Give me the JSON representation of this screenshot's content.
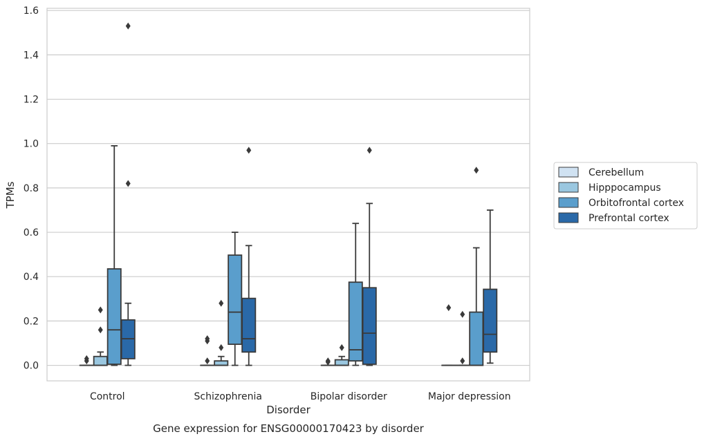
{
  "chart_data": {
    "type": "box",
    "title": "Gene expression for ENSG00000170423 by disorder",
    "xlabel": "Disorder",
    "ylabel": "TPMs",
    "ylim": [
      -0.07,
      1.61
    ],
    "yticks": [
      0.0,
      0.2,
      0.4,
      0.6,
      0.8,
      1.0,
      1.2,
      1.4,
      1.6
    ],
    "ytick_labels": [
      "0.0",
      "0.2",
      "0.4",
      "0.6",
      "0.8",
      "1.0",
      "1.2",
      "1.4",
      "1.6"
    ],
    "grid": true,
    "legend_position": "right",
    "categories": [
      "Control",
      "Schizophrenia",
      "Bipolar disorder",
      "Major depression"
    ],
    "series": [
      {
        "name": "Cerebellum",
        "color": "#d0e2f2",
        "boxes": [
          {
            "whislo": 0.0,
            "q1": 0.0,
            "med": 0.0,
            "q3": 0.0,
            "whishi": 0.0,
            "fliers": []
          },
          {
            "whislo": 0.0,
            "q1": 0.0,
            "med": 0.0,
            "q3": 0.0,
            "whishi": 0.0,
            "fliers": []
          },
          {
            "whislo": 0.0,
            "q1": 0.0,
            "med": 0.0,
            "q3": 0.0,
            "whishi": 0.0,
            "fliers": []
          },
          {
            "whislo": 0.0,
            "q1": 0.0,
            "med": 0.0,
            "q3": 0.0,
            "whishi": 0.0,
            "fliers": []
          }
        ]
      },
      {
        "name": "Hipppocampus",
        "color": "#9ac7e0",
        "boxes": [
          {
            "whislo": 0.0,
            "q1": 0.0,
            "med": 0.0,
            "q3": 0.04,
            "whishi": 0.06,
            "fliers": [
              0.16,
              0.25
            ]
          },
          {
            "whislo": 0.0,
            "q1": 0.0,
            "med": 0.0,
            "q3": 0.02,
            "whishi": 0.04,
            "fliers": [
              0.08,
              0.28
            ]
          },
          {
            "whislo": 0.0,
            "q1": 0.0,
            "med": 0.0,
            "q3": 0.025,
            "whishi": 0.04,
            "fliers": [
              0.08
            ]
          },
          {
            "whislo": 0.0,
            "q1": 0.0,
            "med": 0.0,
            "q3": 0.0,
            "whishi": 0.0,
            "fliers": [
              0.02,
              0.23
            ]
          }
        ]
      },
      {
        "name": "Orbitofrontal cortex",
        "color": "#5a9ecc",
        "boxes": [
          {
            "whislo": 0.0,
            "q1": 0.005,
            "med": 0.16,
            "q3": 0.435,
            "whishi": 0.99,
            "fliers": []
          },
          {
            "whislo": 0.0,
            "q1": 0.095,
            "med": 0.24,
            "q3": 0.497,
            "whishi": 0.6,
            "fliers": []
          },
          {
            "whislo": 0.0,
            "q1": 0.02,
            "med": 0.07,
            "q3": 0.375,
            "whishi": 0.64,
            "fliers": []
          },
          {
            "whislo": 0.0,
            "q1": 0.0,
            "med": 0.0,
            "q3": 0.24,
            "whishi": 0.53,
            "fliers": [
              0.88
            ]
          }
        ]
      },
      {
        "name": "Prefrontal cortex",
        "color": "#2a69a8",
        "boxes": [
          {
            "whislo": 0.0,
            "q1": 0.03,
            "med": 0.12,
            "q3": 0.205,
            "whishi": 0.28,
            "fliers": [
              0.82,
              1.53
            ]
          },
          {
            "whislo": 0.0,
            "q1": 0.06,
            "med": 0.12,
            "q3": 0.302,
            "whishi": 0.54,
            "fliers": [
              0.97
            ]
          },
          {
            "whislo": 0.0,
            "q1": 0.005,
            "med": 0.145,
            "q3": 0.35,
            "whishi": 0.73,
            "fliers": [
              0.97
            ]
          },
          {
            "whislo": 0.01,
            "q1": 0.06,
            "med": 0.14,
            "q3": 0.343,
            "whishi": 0.7,
            "fliers": []
          }
        ]
      }
    ],
    "extra_fliers": [
      {
        "category": 0,
        "series": 0,
        "values": [
          0.02,
          0.03
        ]
      },
      {
        "category": 1,
        "series": 0,
        "values": [
          0.02,
          0.11,
          0.12
        ]
      },
      {
        "category": 2,
        "series": 0,
        "values": [
          0.015,
          0.02
        ]
      },
      {
        "category": 3,
        "series": 0,
        "values": [
          0.26
        ]
      }
    ]
  }
}
